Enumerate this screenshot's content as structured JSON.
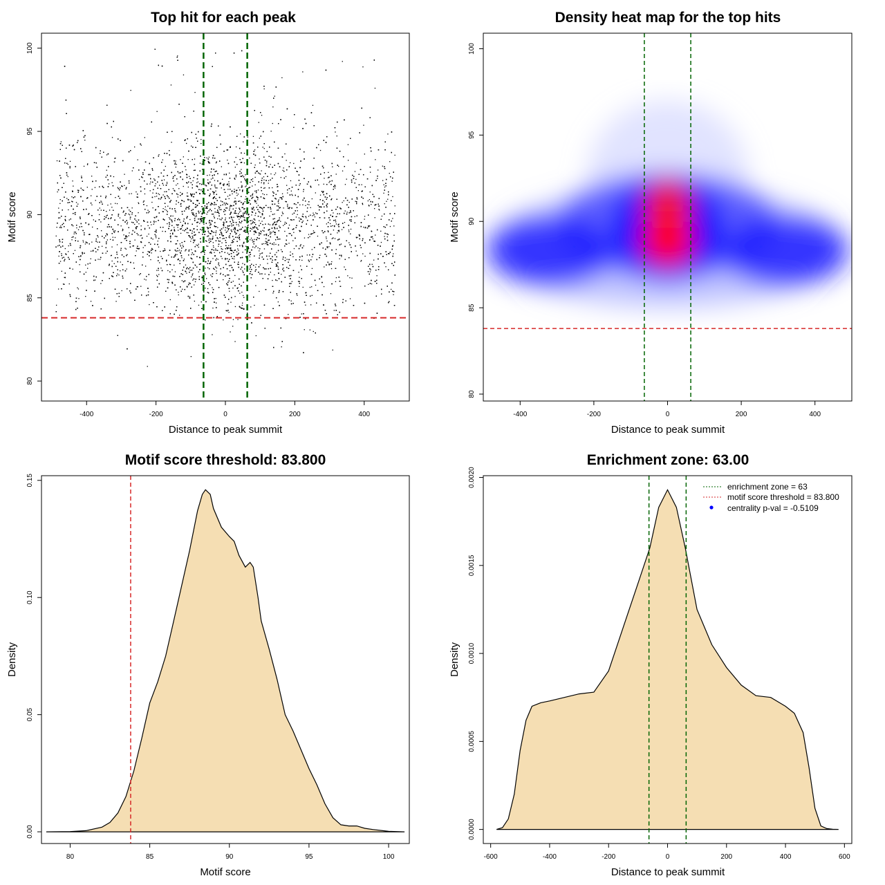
{
  "chart_data": [
    {
      "type": "scatter",
      "title": "Top hit for each peak",
      "xlabel": "Distance to peak summit",
      "ylabel": "Motif score",
      "xlim": [
        -530,
        530
      ],
      "ylim": [
        78.8,
        100.9
      ],
      "xticks": [
        -400,
        -200,
        0,
        200,
        400
      ],
      "xtick_labels": [
        "-400",
        "-200",
        "0",
        "200",
        "400"
      ],
      "yticks": [
        80,
        85,
        90,
        95,
        100
      ],
      "ytick_labels": [
        "80",
        "85",
        "90",
        "95",
        "100"
      ],
      "x_range_of_points": [
        -490,
        490
      ],
      "y_center": 89.3,
      "point_density": "high near x=0 and y≈89",
      "vlines": [
        -63,
        63
      ],
      "hline": 83.8,
      "vline_color": "#006400",
      "hline_color": "#d62728",
      "point_color": "#000000",
      "grid": false
    },
    {
      "type": "heatmap",
      "title": "Density heat map for the top hits",
      "xlabel": "Distance to peak summit",
      "ylabel": "Motif score",
      "xlim": [
        -500,
        500
      ],
      "ylim": [
        79.6,
        100.9
      ],
      "xticks": [
        -400,
        -200,
        0,
        200,
        400
      ],
      "xtick_labels": [
        "-400",
        "-200",
        "0",
        "200",
        "400"
      ],
      "yticks": [
        80,
        85,
        90,
        95,
        100
      ],
      "ytick_labels": [
        "80",
        "85",
        "90",
        "95",
        "100"
      ],
      "density_peak": {
        "x": 0,
        "y": 88.8
      },
      "color_scale": [
        "#ffffff",
        "#0000ff",
        "#ff0000"
      ],
      "vlines": [
        -63,
        63
      ],
      "hline": 83.8,
      "grid": false
    },
    {
      "type": "area",
      "title": "Motif score threshold: 83.800",
      "xlabel": "Motif score",
      "ylabel": "Density",
      "xlim": [
        78.2,
        101.3
      ],
      "ylim": [
        -0.005,
        0.152
      ],
      "xticks": [
        80,
        85,
        90,
        95,
        100
      ],
      "xtick_labels": [
        "80",
        "85",
        "90",
        "95",
        "100"
      ],
      "yticks": [
        0,
        0.05,
        0.1,
        0.15
      ],
      "ytick_labels": [
        "0.00",
        "0.05",
        "0.10",
        "0.15"
      ],
      "x": [
        78.5,
        80,
        81,
        82,
        82.5,
        83,
        83.5,
        84,
        84.5,
        85,
        85.5,
        86,
        86.5,
        87,
        87.5,
        88,
        88.3,
        88.5,
        88.8,
        89,
        89.5,
        90,
        90.3,
        90.6,
        91,
        91.3,
        91.5,
        91.8,
        92,
        92.5,
        93,
        93.5,
        94,
        94.5,
        95,
        95.5,
        96,
        96.5,
        97,
        97.5,
        98,
        98.5,
        99,
        100,
        101
      ],
      "values": [
        0,
        0.0001,
        0.0005,
        0.002,
        0.004,
        0.008,
        0.015,
        0.026,
        0.04,
        0.055,
        0.064,
        0.075,
        0.09,
        0.105,
        0.12,
        0.137,
        0.144,
        0.146,
        0.144,
        0.138,
        0.13,
        0.126,
        0.124,
        0.118,
        0.113,
        0.115,
        0.113,
        0.1,
        0.09,
        0.078,
        0.065,
        0.05,
        0.043,
        0.035,
        0.027,
        0.02,
        0.012,
        0.006,
        0.003,
        0.0025,
        0.0025,
        0.0015,
        0.001,
        0.0002,
        0
      ],
      "vline": 83.8,
      "vline_color": "#d62728",
      "fill": "#f5deb3",
      "grid": false
    },
    {
      "type": "area",
      "title": "Enrichment zone: 63.00",
      "xlabel": "Distance to peak summit",
      "ylabel": "Density",
      "xlim": [
        -625,
        625
      ],
      "ylim": [
        -8e-05,
        0.00201
      ],
      "xticks": [
        -600,
        -400,
        -200,
        0,
        200,
        400,
        600
      ],
      "xtick_labels": [
        "-600",
        "-400",
        "-200",
        "0",
        "200",
        "400",
        "600"
      ],
      "yticks": [
        0,
        0.0005,
        0.001,
        0.0015,
        0.002
      ],
      "ytick_labels": [
        "0.0000",
        "0.0005",
        "0.0010",
        "0.0015",
        "0.0020"
      ],
      "x": [
        -580,
        -560,
        -540,
        -520,
        -500,
        -480,
        -460,
        -430,
        -400,
        -350,
        -300,
        -250,
        -200,
        -150,
        -100,
        -60,
        -30,
        0,
        30,
        60,
        100,
        150,
        200,
        250,
        300,
        350,
        400,
        430,
        460,
        480,
        500,
        520,
        540,
        560,
        580
      ],
      "values": [
        0,
        1e-05,
        6e-05,
        0.0002,
        0.00045,
        0.00062,
        0.0007,
        0.00072,
        0.00073,
        0.00075,
        0.00077,
        0.00078,
        0.0009,
        0.00115,
        0.0014,
        0.0016,
        0.00183,
        0.00193,
        0.00183,
        0.0016,
        0.00125,
        0.00105,
        0.00092,
        0.00082,
        0.00076,
        0.00075,
        0.0007,
        0.00066,
        0.00055,
        0.00035,
        0.00012,
        2e-05,
        5e-06,
        1e-06,
        0
      ],
      "vlines": [
        -63,
        63
      ],
      "vline_color": "#006400",
      "fill": "#f5deb3",
      "legend": {
        "position": "top-right",
        "entries": [
          {
            "label": "enrichment zone = 63",
            "style": "dotted",
            "color": "#006400"
          },
          {
            "label": "motif score threshold = 83.800",
            "style": "dotted",
            "color": "#d62728"
          },
          {
            "label": "centrality p-val = -0.5109",
            "style": "point",
            "color": "#0000ff"
          }
        ]
      },
      "grid": false
    }
  ]
}
